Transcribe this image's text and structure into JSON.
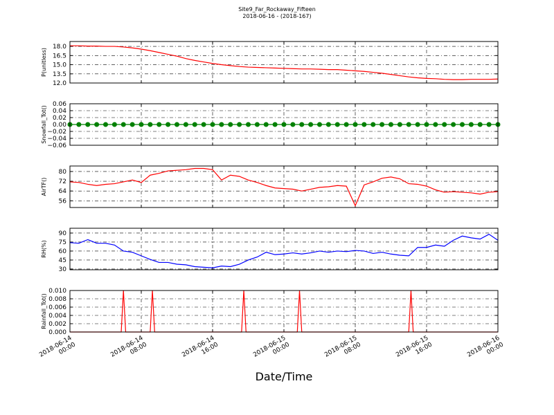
{
  "title": "Site9_Far_Rockaway_Fifteen",
  "subtitle": "2018-06-16 - (2018-167)",
  "x_label": "Date/Time",
  "chart_data": [
    {
      "type": "line",
      "y_label": "P(unitless)",
      "color": "#ff0000",
      "grid": true,
      "xlim": [
        "2018-06-14 00:00",
        "2018-06-16 00:00"
      ],
      "ylim": [
        12,
        18.8
      ],
      "yticks": [
        {
          "value": 12,
          "label": "12.0"
        },
        {
          "value": 13.5,
          "label": "13.5"
        },
        {
          "value": 15,
          "label": "15.0"
        },
        {
          "value": 16.5,
          "label": "16.5"
        },
        {
          "value": 18,
          "label": "18.0"
        }
      ],
      "x": [
        "2018-06-14 00:00",
        "2018-06-14 01:00",
        "2018-06-14 02:00",
        "2018-06-14 03:00",
        "2018-06-14 04:00",
        "2018-06-14 05:00",
        "2018-06-14 06:00",
        "2018-06-14 07:00",
        "2018-06-14 08:00",
        "2018-06-14 09:00",
        "2018-06-14 10:00",
        "2018-06-14 11:00",
        "2018-06-14 12:00",
        "2018-06-14 13:00",
        "2018-06-14 14:00",
        "2018-06-14 15:00",
        "2018-06-14 16:00",
        "2018-06-14 17:00",
        "2018-06-14 18:00",
        "2018-06-14 19:00",
        "2018-06-14 20:00",
        "2018-06-14 21:00",
        "2018-06-14 22:00",
        "2018-06-14 23:00",
        "2018-06-15 00:00",
        "2018-06-15 01:00",
        "2018-06-15 02:00",
        "2018-06-15 03:00",
        "2018-06-15 04:00",
        "2018-06-15 05:00",
        "2018-06-15 06:00",
        "2018-06-15 07:00",
        "2018-06-15 08:00",
        "2018-06-15 09:00",
        "2018-06-15 10:00",
        "2018-06-15 11:00",
        "2018-06-15 12:00",
        "2018-06-15 13:00",
        "2018-06-15 14:00",
        "2018-06-15 15:00",
        "2018-06-15 16:00",
        "2018-06-15 17:00",
        "2018-06-15 18:00",
        "2018-06-15 19:00",
        "2018-06-15 20:00",
        "2018-06-15 21:00",
        "2018-06-15 22:00",
        "2018-06-15 23:00",
        "2018-06-16 00:00"
      ],
      "values": [
        18.1,
        18.1,
        18.05,
        18.05,
        18.0,
        18.0,
        17.9,
        17.75,
        17.55,
        17.3,
        17.0,
        16.7,
        16.4,
        16.0,
        15.7,
        15.45,
        15.2,
        15.0,
        14.85,
        14.7,
        14.6,
        14.55,
        14.5,
        14.45,
        14.4,
        14.35,
        14.3,
        14.3,
        14.25,
        14.2,
        14.2,
        14.1,
        14.0,
        13.9,
        13.75,
        13.6,
        13.4,
        13.2,
        13.0,
        12.85,
        12.75,
        12.7,
        12.6,
        12.55,
        12.55,
        12.6,
        12.6,
        12.6,
        12.65
      ]
    },
    {
      "type": "line",
      "y_label": "Snowfall_Tot()",
      "color": "#008000",
      "marker": "o",
      "grid": true,
      "xlim": [
        "2018-06-14 00:00",
        "2018-06-16 00:00"
      ],
      "ylim": [
        -0.06,
        0.06
      ],
      "yticks": [
        {
          "value": -0.06,
          "label": "−0.06"
        },
        {
          "value": -0.04,
          "label": "−0.04"
        },
        {
          "value": -0.02,
          "label": "−0.02"
        },
        {
          "value": 0,
          "label": "0.00"
        },
        0.02,
        0.04,
        0.06
      ],
      "x": [
        "2018-06-14 00:00",
        "2018-06-14 01:00",
        "2018-06-14 02:00",
        "2018-06-14 03:00",
        "2018-06-14 04:00",
        "2018-06-14 05:00",
        "2018-06-14 06:00",
        "2018-06-14 07:00",
        "2018-06-14 08:00",
        "2018-06-14 09:00",
        "2018-06-14 10:00",
        "2018-06-14 11:00",
        "2018-06-14 12:00",
        "2018-06-14 13:00",
        "2018-06-14 14:00",
        "2018-06-14 15:00",
        "2018-06-14 16:00",
        "2018-06-14 17:00",
        "2018-06-14 18:00",
        "2018-06-14 19:00",
        "2018-06-14 20:00",
        "2018-06-14 21:00",
        "2018-06-14 22:00",
        "2018-06-14 23:00",
        "2018-06-15 00:00",
        "2018-06-15 01:00",
        "2018-06-15 02:00",
        "2018-06-15 03:00",
        "2018-06-15 04:00",
        "2018-06-15 05:00",
        "2018-06-15 06:00",
        "2018-06-15 07:00",
        "2018-06-15 08:00",
        "2018-06-15 09:00",
        "2018-06-15 10:00",
        "2018-06-15 11:00",
        "2018-06-15 12:00",
        "2018-06-15 13:00",
        "2018-06-15 14:00",
        "2018-06-15 15:00",
        "2018-06-15 16:00",
        "2018-06-15 17:00",
        "2018-06-15 18:00",
        "2018-06-15 19:00",
        "2018-06-15 20:00",
        "2018-06-15 21:00",
        "2018-06-15 22:00",
        "2018-06-15 23:00",
        "2018-06-16 00:00"
      ],
      "values": [
        0,
        0,
        0,
        0,
        0,
        0,
        0,
        0,
        0,
        0,
        0,
        0,
        0,
        0,
        0,
        0,
        0,
        0,
        0,
        0,
        0,
        0,
        0,
        0,
        0,
        0,
        0,
        0,
        0,
        0,
        0,
        0,
        0,
        0,
        0,
        0,
        0,
        0,
        0,
        0,
        0,
        0,
        0,
        0,
        0,
        0,
        0,
        0,
        0
      ]
    },
    {
      "type": "line",
      "y_label": "AirTF()",
      "color": "#ff0000",
      "grid": true,
      "xlim": [
        "2018-06-14 00:00",
        "2018-06-16 00:00"
      ],
      "ylim": [
        50.5,
        84.5
      ],
      "yticks": [
        56,
        64,
        72,
        80
      ],
      "x": [
        "2018-06-14 00:00",
        "2018-06-14 01:00",
        "2018-06-14 02:00",
        "2018-06-14 03:00",
        "2018-06-14 04:00",
        "2018-06-14 05:00",
        "2018-06-14 06:00",
        "2018-06-14 07:00",
        "2018-06-14 08:00",
        "2018-06-14 09:00",
        "2018-06-14 10:00",
        "2018-06-14 11:00",
        "2018-06-14 12:00",
        "2018-06-14 13:00",
        "2018-06-14 14:00",
        "2018-06-14 15:00",
        "2018-06-14 16:00",
        "2018-06-14 17:00",
        "2018-06-14 18:00",
        "2018-06-14 19:00",
        "2018-06-14 20:00",
        "2018-06-14 21:00",
        "2018-06-14 22:00",
        "2018-06-14 23:00",
        "2018-06-15 00:00",
        "2018-06-15 01:00",
        "2018-06-15 02:00",
        "2018-06-15 03:00",
        "2018-06-15 04:00",
        "2018-06-15 05:00",
        "2018-06-15 06:00",
        "2018-06-15 07:00",
        "2018-06-15 08:00",
        "2018-06-15 09:00",
        "2018-06-15 10:00",
        "2018-06-15 11:00",
        "2018-06-15 12:00",
        "2018-06-15 13:00",
        "2018-06-15 14:00",
        "2018-06-15 15:00",
        "2018-06-15 16:00",
        "2018-06-15 17:00",
        "2018-06-15 18:00",
        "2018-06-15 19:00",
        "2018-06-15 20:00",
        "2018-06-15 21:00",
        "2018-06-15 22:00",
        "2018-06-15 23:00",
        "2018-06-16 00:00"
      ],
      "values": [
        71.5,
        71,
        69.5,
        68.5,
        69.5,
        70,
        71.5,
        73,
        71,
        77,
        78.5,
        80.5,
        81,
        81.5,
        82.5,
        82.5,
        81.5,
        73,
        77,
        76,
        73,
        71,
        68.5,
        66.5,
        66,
        65.5,
        64,
        65.5,
        67,
        67.5,
        68.5,
        68,
        52,
        69,
        71.5,
        74.5,
        75.5,
        74,
        70,
        69.5,
        68,
        65,
        63,
        63.5,
        63,
        62.5,
        61.5,
        63,
        63.5
      ]
    },
    {
      "type": "line",
      "y_label": "RH(%)",
      "color": "#0000ff",
      "grid": true,
      "xlim": [
        "2018-06-14 00:00",
        "2018-06-16 00:00"
      ],
      "ylim": [
        28.8,
        98
      ],
      "yticks": [
        30,
        45,
        60,
        75,
        90
      ],
      "x": [
        "2018-06-14 00:00",
        "2018-06-14 01:00",
        "2018-06-14 02:00",
        "2018-06-14 03:00",
        "2018-06-14 04:00",
        "2018-06-14 05:00",
        "2018-06-14 06:00",
        "2018-06-14 07:00",
        "2018-06-14 08:00",
        "2018-06-14 09:00",
        "2018-06-14 10:00",
        "2018-06-14 11:00",
        "2018-06-14 12:00",
        "2018-06-14 13:00",
        "2018-06-14 14:00",
        "2018-06-14 15:00",
        "2018-06-14 16:00",
        "2018-06-14 17:00",
        "2018-06-14 18:00",
        "2018-06-14 19:00",
        "2018-06-14 20:00",
        "2018-06-14 21:00",
        "2018-06-14 22:00",
        "2018-06-14 23:00",
        "2018-06-15 00:00",
        "2018-06-15 01:00",
        "2018-06-15 02:00",
        "2018-06-15 03:00",
        "2018-06-15 04:00",
        "2018-06-15 05:00",
        "2018-06-15 06:00",
        "2018-06-15 07:00",
        "2018-06-15 08:00",
        "2018-06-15 09:00",
        "2018-06-15 10:00",
        "2018-06-15 11:00",
        "2018-06-15 12:00",
        "2018-06-15 13:00",
        "2018-06-15 14:00",
        "2018-06-15 15:00",
        "2018-06-15 16:00",
        "2018-06-15 17:00",
        "2018-06-15 18:00",
        "2018-06-15 19:00",
        "2018-06-15 20:00",
        "2018-06-15 21:00",
        "2018-06-15 22:00",
        "2018-06-15 23:00",
        "2018-06-16 00:00"
      ],
      "values": [
        74,
        73,
        79,
        73,
        73,
        70,
        60,
        58,
        52,
        46,
        41,
        41,
        38,
        37,
        34,
        33,
        32,
        35,
        34,
        38,
        45,
        50,
        58,
        54,
        55,
        57,
        55,
        57,
        60,
        58,
        60,
        59,
        61,
        60,
        56,
        58,
        55,
        53,
        52,
        66,
        66,
        70,
        68,
        78,
        85,
        82,
        80,
        88,
        78
      ]
    },
    {
      "type": "line",
      "y_label": "Rainfall_Tot()",
      "color": "#ff0000",
      "grid": true,
      "xlim": [
        "2018-06-14 00:00",
        "2018-06-16 00:00"
      ],
      "ylim": [
        0,
        0.01
      ],
      "yticks": [
        {
          "value": 0,
          "label": "0.000"
        },
        {
          "value": 0.002,
          "label": "0.002"
        },
        {
          "value": 0.004,
          "label": "0.004"
        },
        {
          "value": 0.006,
          "label": "0.006"
        },
        {
          "value": 0.008,
          "label": "0.008"
        },
        {
          "value": 0.01,
          "label": "0.010"
        }
      ],
      "xticks": [
        "2018-06-14 00:00",
        "2018-06-14 08:00",
        "2018-06-14 16:00",
        "2018-06-15 00:00",
        "2018-06-15 08:00",
        "2018-06-15 16:00",
        "2018-06-16 00:00"
      ],
      "x": [
        "2018-06-14 00:00",
        "2018-06-14 05:45",
        "2018-06-14 06:00",
        "2018-06-14 06:15",
        "2018-06-14 09:00",
        "2018-06-14 09:15",
        "2018-06-14 09:30",
        "2018-06-14 19:15",
        "2018-06-14 19:30",
        "2018-06-14 19:45",
        "2018-06-15 01:30",
        "2018-06-15 01:45",
        "2018-06-15 02:00",
        "2018-06-15 14:00",
        "2018-06-15 14:15",
        "2018-06-15 14:30",
        "2018-06-16 00:00"
      ],
      "values": [
        0,
        0,
        0.01,
        0,
        0,
        0.01,
        0,
        0,
        0.01,
        0,
        0,
        0.01,
        0,
        0,
        0.01,
        0,
        0
      ]
    }
  ]
}
